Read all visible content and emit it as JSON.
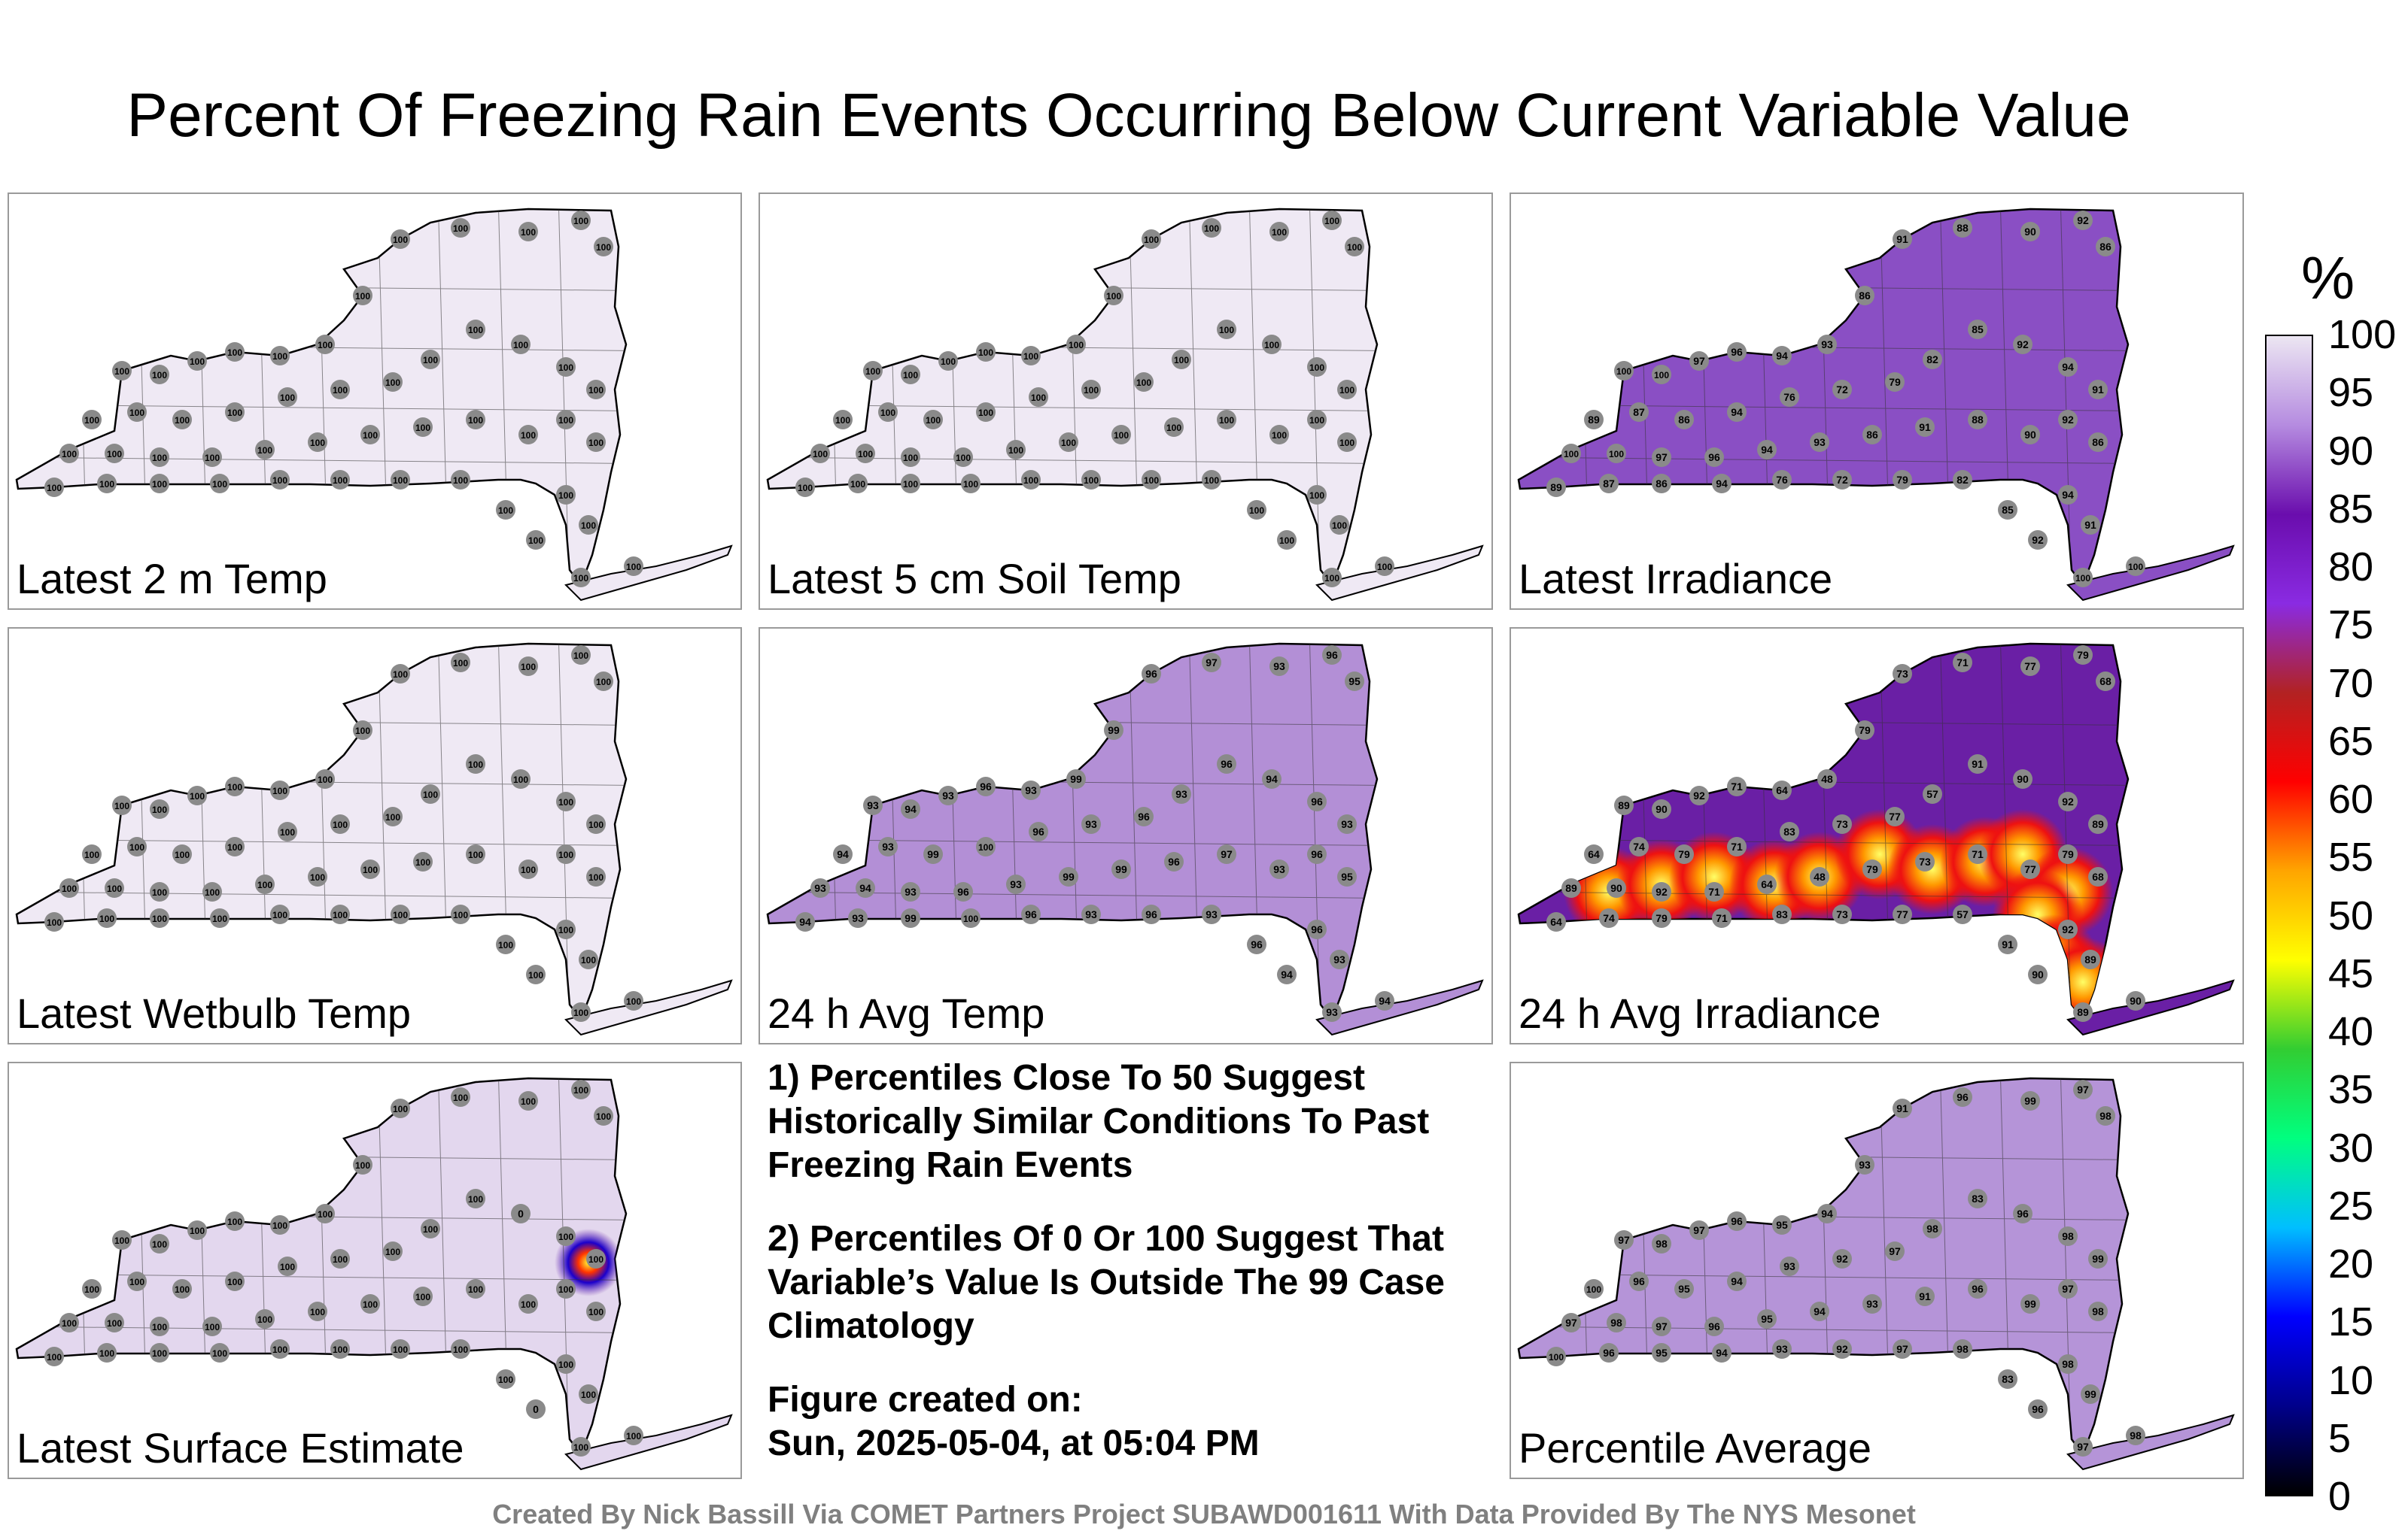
{
  "title": "Percent Of Freezing Rain Events Occurring Below Current Variable Value",
  "colorbar": {
    "unit": "%",
    "ticks": [
      "100",
      "95",
      "90",
      "85",
      "80",
      "75",
      "70",
      "65",
      "60",
      "55",
      "50",
      "45",
      "40",
      "35",
      "30",
      "25",
      "20",
      "15",
      "10",
      "5",
      "0"
    ],
    "colors": [
      "#000000",
      "#00008b",
      "#0000ff",
      "#00bfff",
      "#00ff7f",
      "#32cd32",
      "#ffff00",
      "#ffa500",
      "#ff0000",
      "#b22222",
      "#8a2be2",
      "#6a0dad",
      "#b58be0",
      "#ece6f2"
    ]
  },
  "panels": [
    {
      "label": "Latest 2 m Temp",
      "fill": "#efe9f4",
      "hot": null,
      "values": [
        "100",
        "100",
        "100",
        "100",
        "100",
        "100",
        "100",
        "100",
        "100",
        "100",
        "100",
        "100",
        "100",
        "100",
        "100",
        "100",
        "100",
        "100",
        "100",
        "100",
        "100",
        "100",
        "100",
        "100"
      ]
    },
    {
      "label": "Latest 5 cm Soil Temp",
      "fill": "#efe9f4",
      "hot": null,
      "values": [
        "100",
        "100",
        "100",
        "100",
        "100",
        "100",
        "100",
        "100",
        "100",
        "100",
        "100",
        "100",
        "100",
        "100",
        "100",
        "100",
        "100",
        "100",
        "100",
        "100",
        "100",
        "100",
        "100",
        "100"
      ]
    },
    {
      "label": "Latest Irradiance",
      "fill": "#8a4fc4",
      "hot": null,
      "values": [
        "100",
        "100",
        "97",
        "96",
        "94",
        "93",
        "86",
        "91",
        "88",
        "90",
        "92",
        "86",
        "89",
        "87",
        "86",
        "94",
        "76",
        "72",
        "79",
        "82",
        "85",
        "92",
        "94",
        "91"
      ]
    },
    {
      "label": "Latest Wetbulb Temp",
      "fill": "#efe9f4",
      "hot": null,
      "values": [
        "100",
        "100",
        "100",
        "100",
        "100",
        "100",
        "100",
        "100",
        "100",
        "100",
        "100",
        "100",
        "100",
        "100",
        "100",
        "100",
        "100",
        "100",
        "100",
        "100",
        "100",
        "100",
        "100",
        "100"
      ]
    },
    {
      "label": "24 h Avg Temp",
      "fill": "#b38fd6",
      "hot": null,
      "values": [
        "93",
        "94",
        "93",
        "96",
        "93",
        "99",
        "99",
        "96",
        "97",
        "93",
        "96",
        "95",
        "94",
        "93",
        "99",
        "100",
        "96",
        "93",
        "96",
        "93",
        "96",
        "94",
        "96",
        "93"
      ]
    },
    {
      "label": "24 h Avg Irradiance",
      "fill": "#6a1fa5",
      "hot": "irr",
      "values": [
        "89",
        "90",
        "92",
        "71",
        "64",
        "48",
        "79",
        "73",
        "71",
        "77",
        "79",
        "68",
        "64",
        "74",
        "79",
        "71",
        "83",
        "73",
        "77",
        "57",
        "91",
        "90",
        "92",
        "89"
      ]
    },
    {
      "label": "Latest Surface Estimate",
      "fill": "#e3d7ee",
      "hot": "spot",
      "values": [
        "100",
        "100",
        "100",
        "100",
        "100",
        "100",
        "100",
        "100",
        "100",
        "100",
        "100",
        "100",
        "100",
        "100",
        "100",
        "100",
        "100",
        "100",
        "100",
        "100",
        "100",
        "0",
        "100",
        "100"
      ]
    },
    {
      "label": "Percentile Average",
      "fill": "#b594d8",
      "hot": null,
      "values": [
        "97",
        "98",
        "97",
        "96",
        "95",
        "94",
        "93",
        "91",
        "96",
        "99",
        "97",
        "98",
        "100",
        "96",
        "95",
        "94",
        "93",
        "92",
        "97",
        "98",
        "83",
        "96",
        "98",
        "99"
      ]
    }
  ],
  "notes": [
    "1) Percentiles Close To 50 Suggest Historically Similar Conditions To Past Freezing Rain Events",
    "2) Percentiles Of 0 Or 100 Suggest That Variable’s Value Is Outside The 99 Case Climatology",
    "Figure created on:",
    "Sun, 2025-05-04, at 05:04 PM"
  ],
  "footer": "Created By Nick Bassill Via COMET Partners Project SUBAWD001611 With Data Provided By The NYS Mesonet"
}
